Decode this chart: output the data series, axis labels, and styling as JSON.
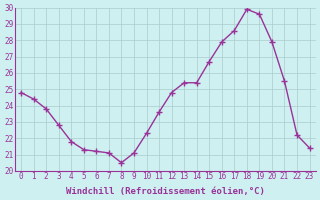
{
  "x": [
    0,
    1,
    2,
    3,
    4,
    5,
    6,
    7,
    8,
    9,
    10,
    11,
    12,
    13,
    14,
    15,
    16,
    17,
    18,
    19,
    20,
    21,
    22,
    23
  ],
  "y": [
    24.8,
    24.4,
    23.8,
    22.8,
    21.8,
    21.3,
    21.2,
    21.1,
    20.5,
    21.1,
    22.3,
    23.6,
    24.8,
    25.4,
    25.4,
    26.7,
    27.9,
    28.6,
    29.9,
    29.6,
    27.9,
    25.5,
    22.2,
    21.4
  ],
  "line_color": "#993399",
  "marker": "+",
  "marker_size": 4,
  "marker_lw": 1.0,
  "bg_color": "#cff0f0",
  "grid_color": "#aacccc",
  "xlabel": "Windchill (Refroidissement éolien,°C)",
  "xlabel_color": "#993399",
  "tick_color": "#993399",
  "spine_color": "#993399",
  "ylim": [
    20,
    30
  ],
  "xlim": [
    -0.5,
    23.5
  ],
  "yticks": [
    20,
    21,
    22,
    23,
    24,
    25,
    26,
    27,
    28,
    29,
    30
  ],
  "xticks": [
    0,
    1,
    2,
    3,
    4,
    5,
    6,
    7,
    8,
    9,
    10,
    11,
    12,
    13,
    14,
    15,
    16,
    17,
    18,
    19,
    20,
    21,
    22,
    23
  ],
  "tick_fontsize": 5.5,
  "xlabel_fontsize": 6.5,
  "linewidth": 1.0
}
